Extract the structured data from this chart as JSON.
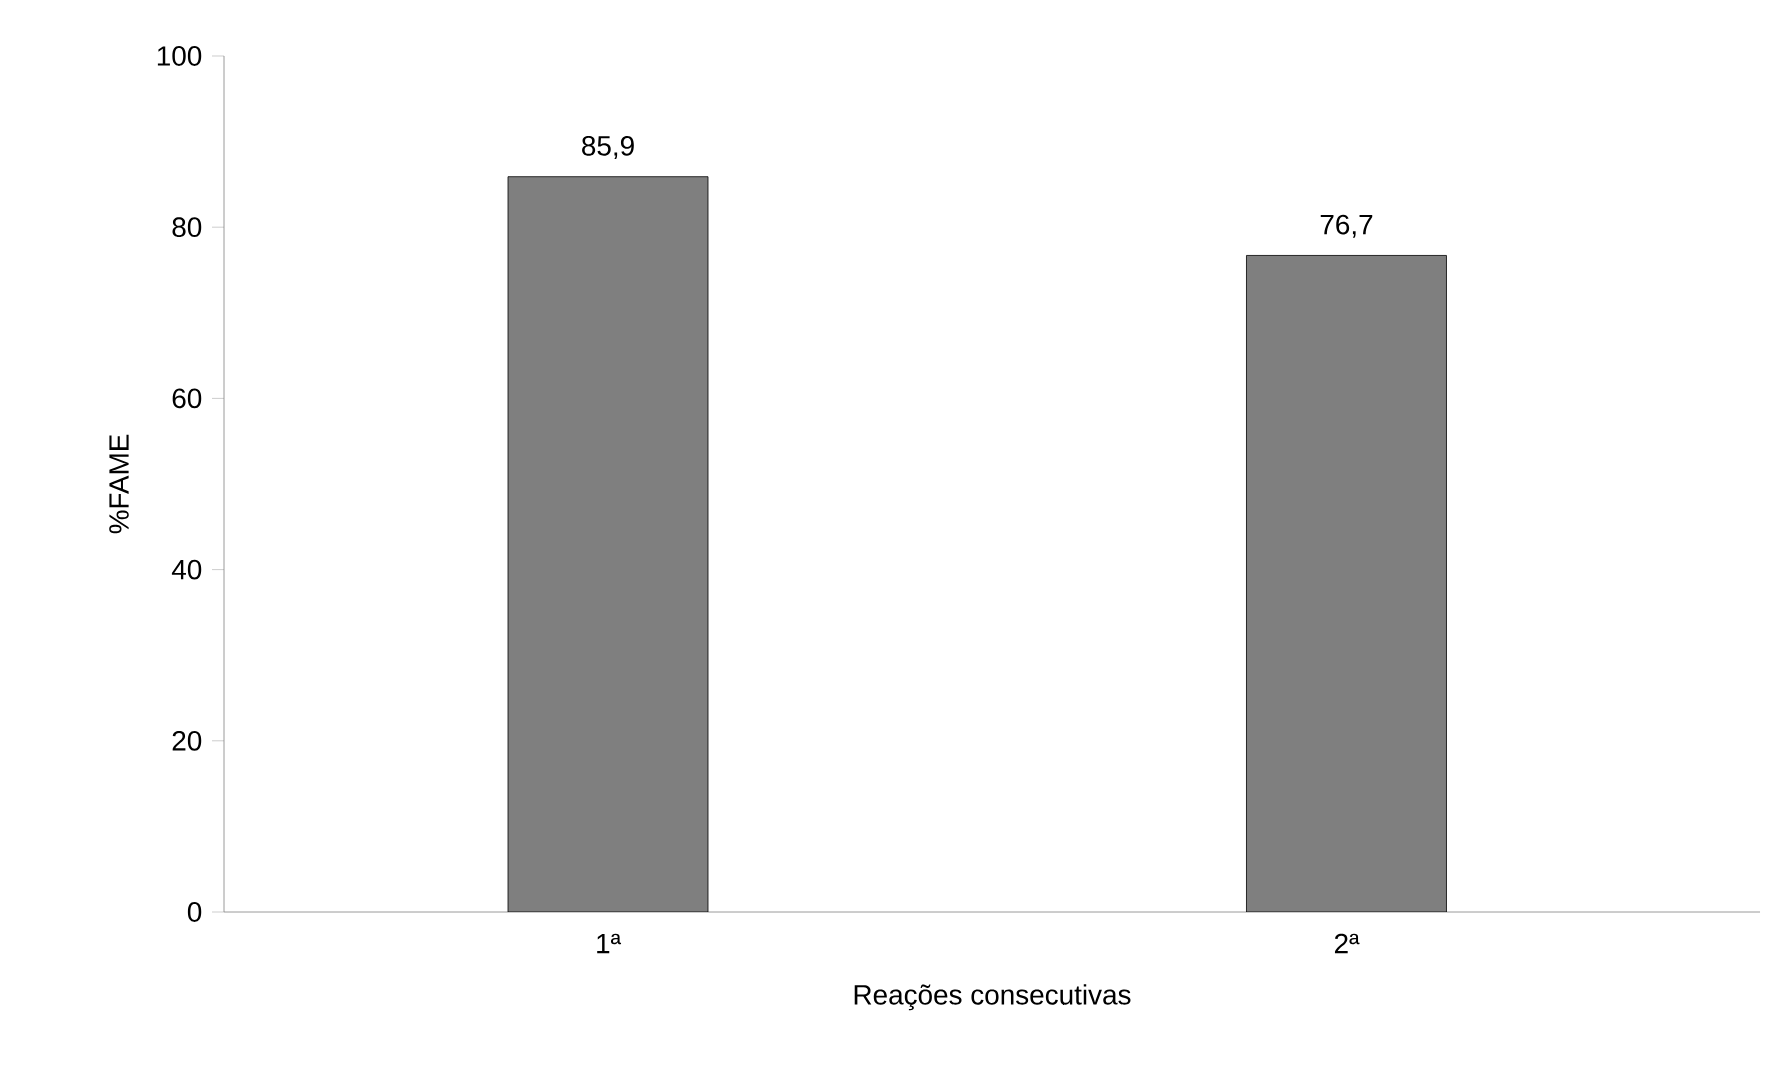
{
  "chart_data": {
    "type": "bar",
    "xlabel": "Reações consecutivas",
    "ylabel": "%FAME",
    "categories": [
      "1ª",
      "2ª"
    ],
    "values": [
      85.9,
      76.7
    ],
    "value_labels": [
      "85,9",
      "76,7"
    ],
    "color": "#7f7f7f",
    "ylim": [
      0,
      100
    ],
    "yticks": [
      0,
      20,
      40,
      60,
      80,
      100
    ],
    "grid": false
  }
}
